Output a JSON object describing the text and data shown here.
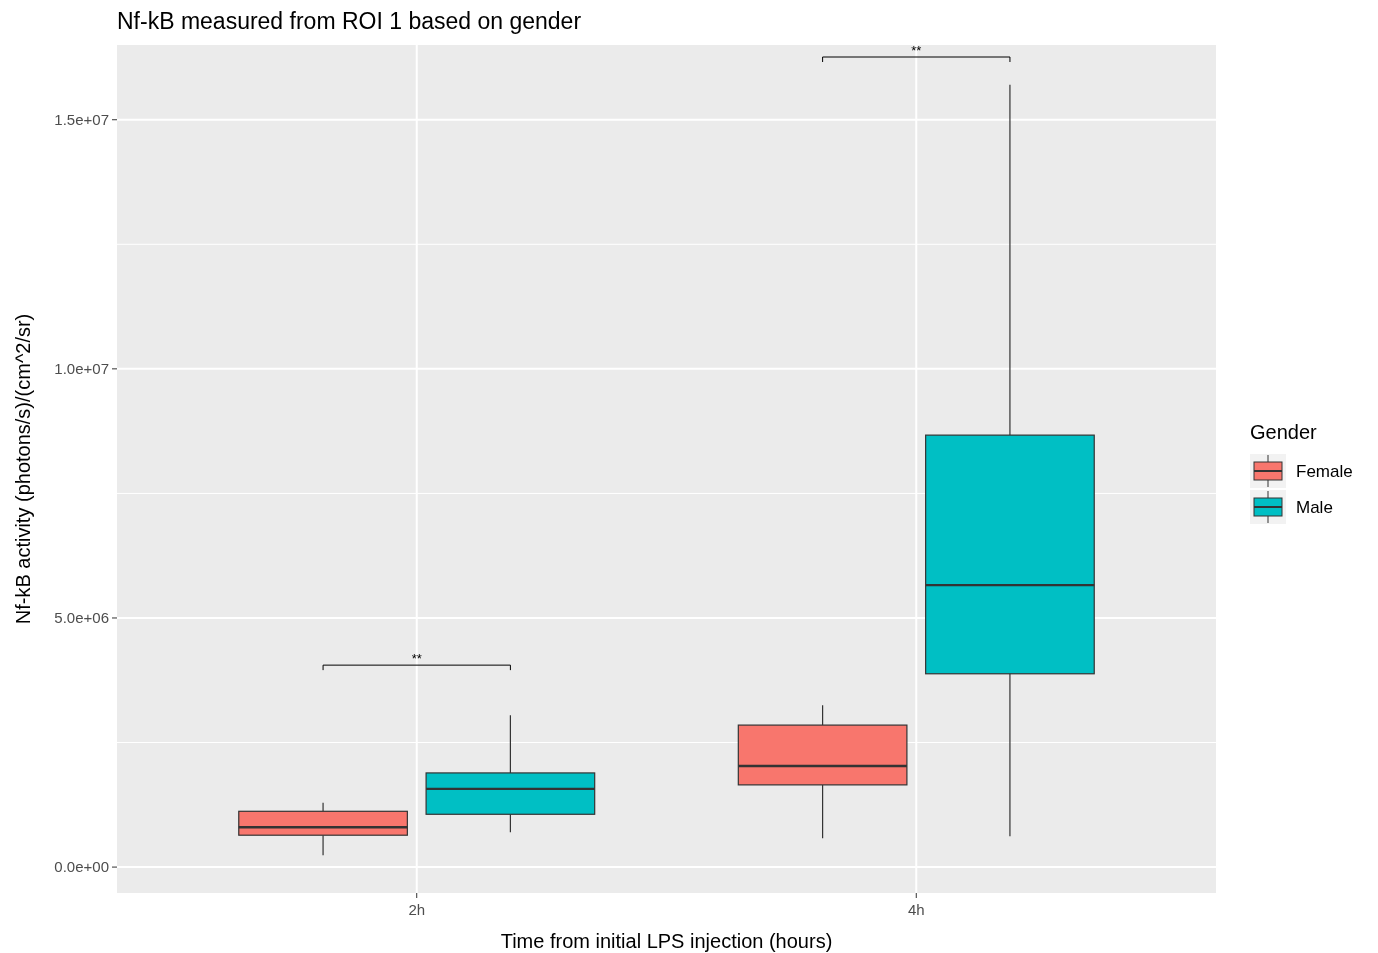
{
  "chart_data": {
    "type": "box",
    "title": "Nf-kB measured from ROI 1 based on gender",
    "xlabel": "Time from initial LPS injection (hours)",
    "ylabel": "Nf-kB activity (photons/s)/(cm^2/sr)",
    "legend_title": "Gender",
    "categories": [
      "2h",
      "4h"
    ],
    "series": [
      {
        "name": "Female",
        "color": "#f8766d",
        "boxes": [
          {
            "low": 240000,
            "q1": 640000,
            "median": 800000,
            "q3": 1120000,
            "high": 1290000
          },
          {
            "low": 580000,
            "q1": 1650000,
            "median": 2030000,
            "q3": 2850000,
            "high": 3250000
          }
        ]
      },
      {
        "name": "Male",
        "color": "#00bfc4",
        "boxes": [
          {
            "low": 700000,
            "q1": 1060000,
            "median": 1570000,
            "q3": 1890000,
            "high": 3050000
          },
          {
            "low": 620000,
            "q1": 3880000,
            "median": 5660000,
            "q3": 8670000,
            "high": 15700000
          }
        ]
      }
    ],
    "ylim": [
      -520000,
      16500000
    ],
    "yticks": [
      {
        "value": 0,
        "label": "0.0e+00"
      },
      {
        "value": 2500000,
        "label": null
      },
      {
        "value": 5000000,
        "label": "5.0e+06"
      },
      {
        "value": 7500000,
        "label": null
      },
      {
        "value": 10000000,
        "label": "1.0e+07"
      },
      {
        "value": 12500000,
        "label": null
      },
      {
        "value": 15000000,
        "label": "1.5e+07"
      }
    ],
    "annotations": [
      "**",
      "**"
    ],
    "grid": true,
    "legend": "right"
  }
}
